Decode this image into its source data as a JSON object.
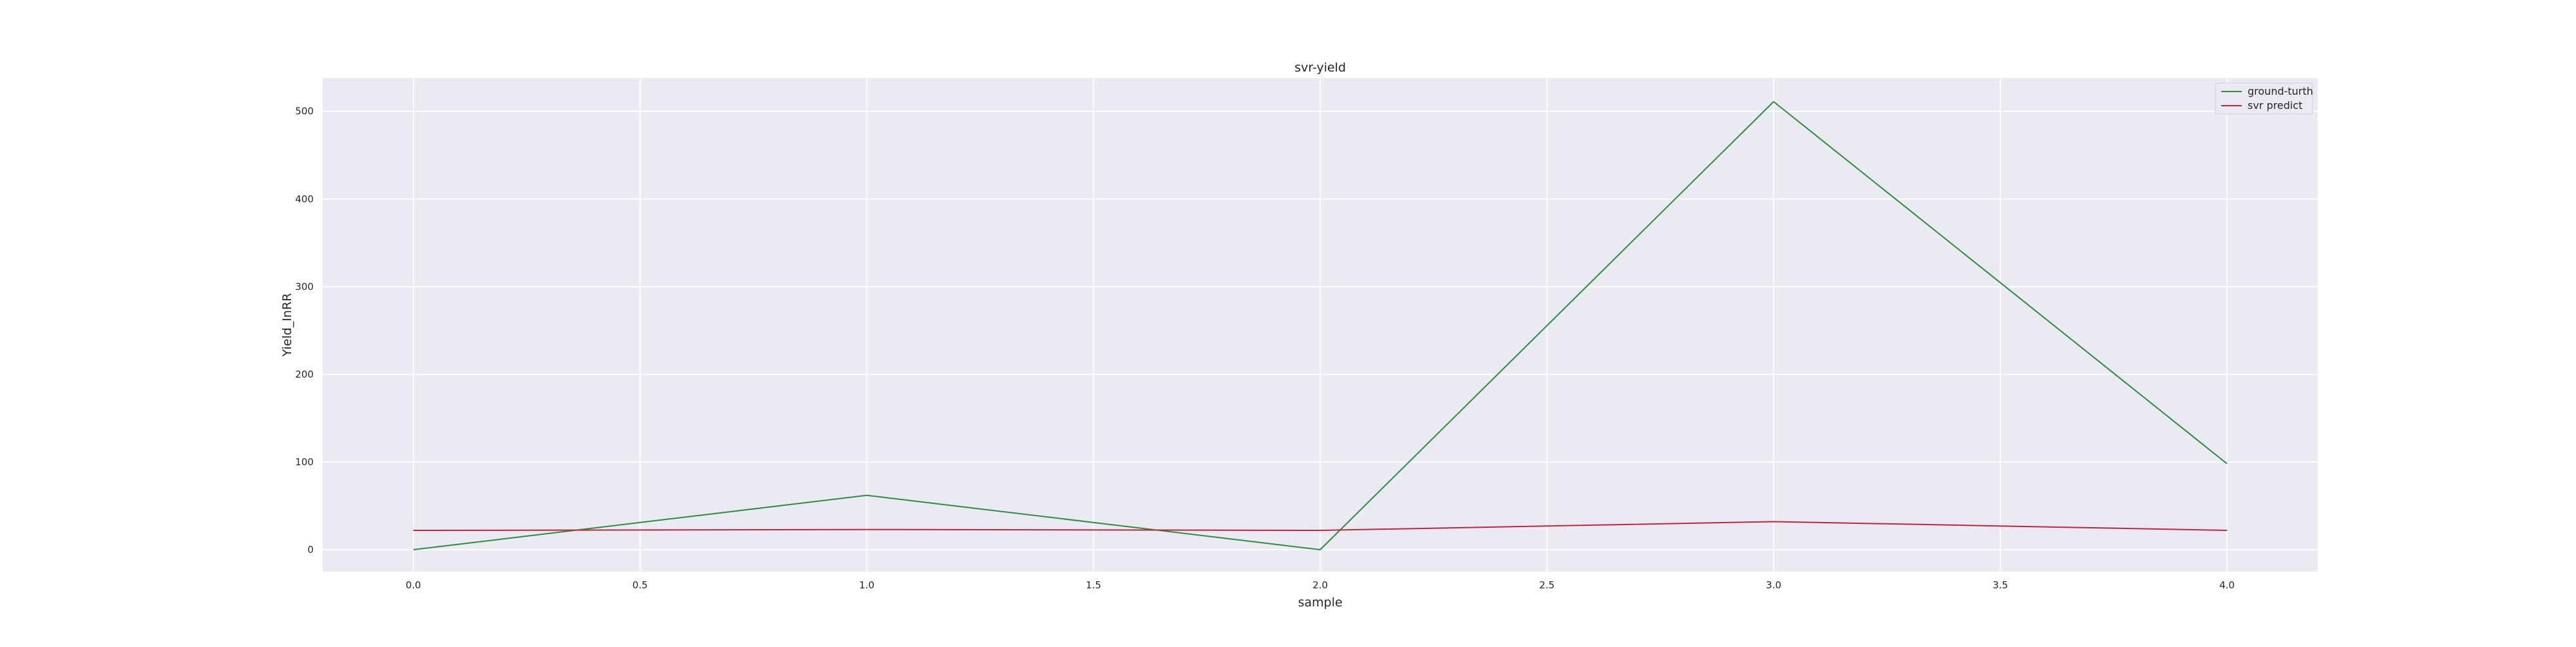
{
  "chart_data": {
    "type": "line",
    "title": "svr-yield",
    "xlabel": "sample",
    "ylabel": "Yield_InRR",
    "x": [
      0,
      1,
      2,
      3,
      4
    ],
    "xlim": [
      -0.2,
      4.2
    ],
    "ylim": [
      -25,
      538
    ],
    "xticks": [
      "0.0",
      "0.5",
      "1.0",
      "1.5",
      "2.0",
      "2.5",
      "3.0",
      "3.5",
      "4.0"
    ],
    "yticks": [
      "0",
      "100",
      "200",
      "300",
      "400",
      "500"
    ],
    "grid": true,
    "legend_position": "top-right",
    "series": [
      {
        "name": "ground-turth",
        "color": "#2e8b3e",
        "values": [
          0,
          62,
          0,
          511,
          98
        ]
      },
      {
        "name": "svr predict",
        "color": "#c0253a",
        "values": [
          22,
          23,
          22,
          32,
          22
        ]
      }
    ]
  },
  "colors": {
    "plot_background": "#eaeaf2",
    "grid": "#ffffff"
  }
}
